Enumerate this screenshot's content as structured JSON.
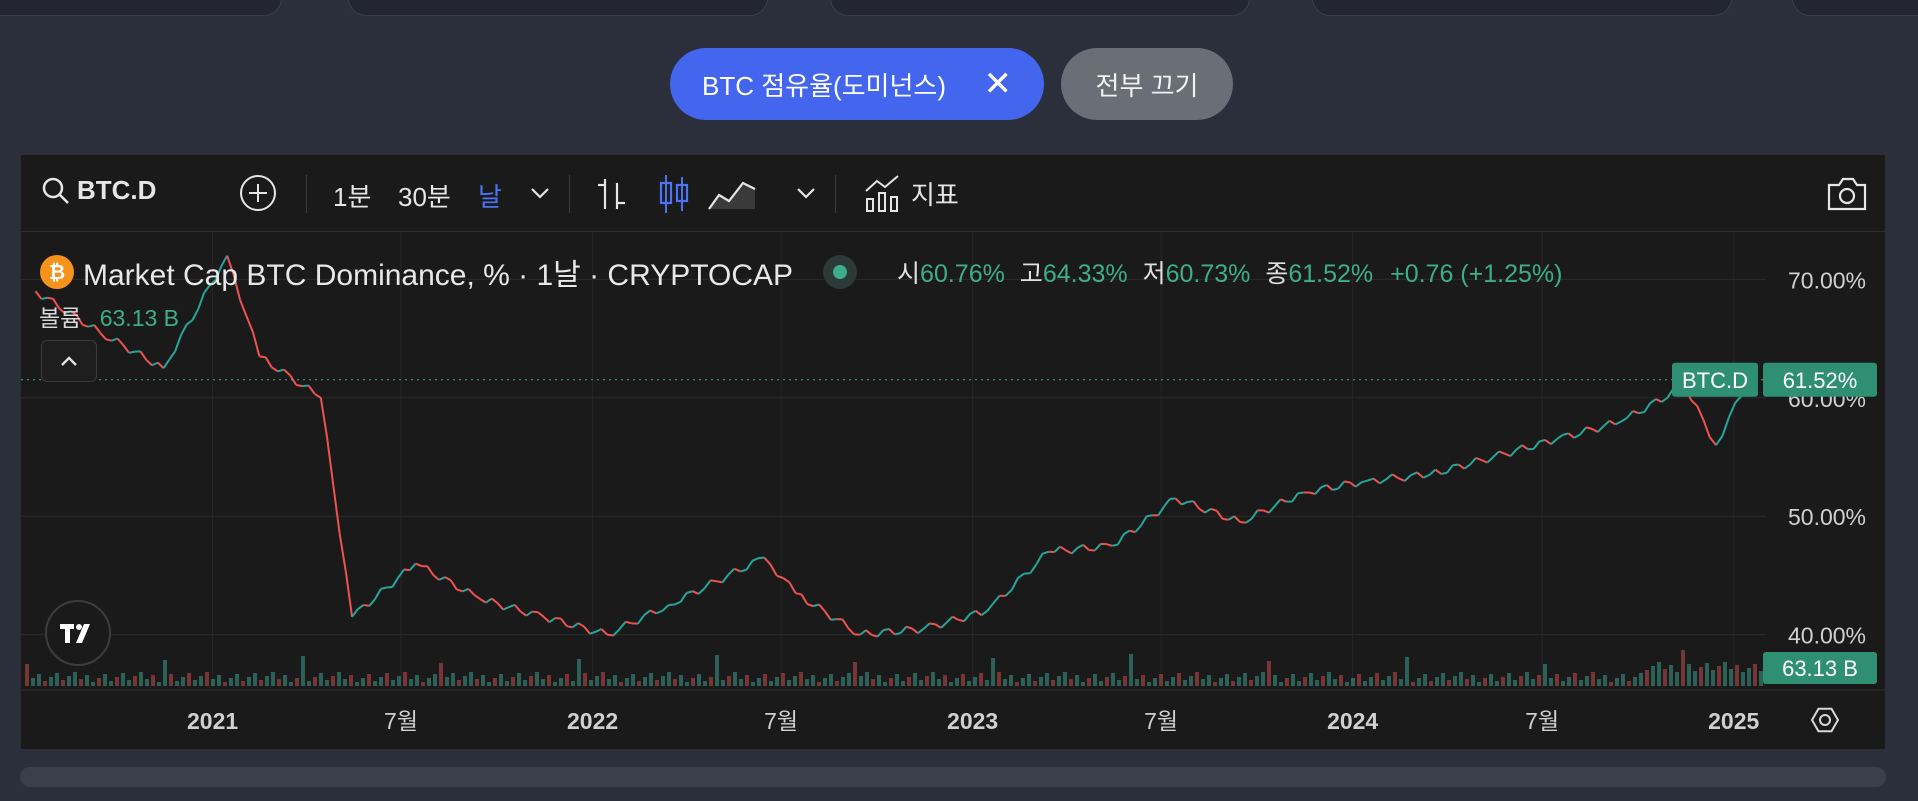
{
  "filter_chips": {
    "active_label": "BTC 점유율(도미넌스)",
    "close_icon": "✕",
    "off_all_label": "전부 끄기"
  },
  "toolbar": {
    "symbol": "BTC.D",
    "intervals": [
      "1분",
      "30분",
      "날"
    ],
    "active_interval": "날",
    "indicators_label": "지표"
  },
  "legend": {
    "title": "Market Cap BTC Dominance, % · 1날 · CRYPTOCAP",
    "open_label": "시",
    "open": "60.76%",
    "high_label": "고",
    "high": "64.33%",
    "low_label": "저",
    "low": "60.73%",
    "close_label": "종",
    "close": "61.52%",
    "change": "+0.76 (+1.25%)",
    "volume_label": "볼륨",
    "volume": "63.13 B"
  },
  "price_tags": {
    "symbol_tag": "BTC.D",
    "price": "61.52%",
    "volume": "63.13 B"
  },
  "colors": {
    "up": "#26a69a",
    "down": "#ef5350",
    "accent": "#4466ee",
    "tag": "#2e8f73"
  },
  "chart_data": {
    "type": "line",
    "title": "Market Cap BTC Dominance, %",
    "y_unit": "%",
    "y_ticks": [
      "70.00%",
      "60.00%",
      "50.00%",
      "40.00%"
    ],
    "ylim": [
      36,
      74
    ],
    "x_ticks": [
      "2021",
      "7월",
      "2022",
      "7월",
      "2023",
      "7월",
      "2024",
      "7월",
      "2025"
    ],
    "x": [
      "2020-07",
      "2020-09",
      "2020-11",
      "2021-01",
      "2021-02",
      "2021-04",
      "2021-05",
      "2021-07",
      "2021-09",
      "2021-11",
      "2022-01",
      "2022-03",
      "2022-06",
      "2022-07",
      "2022-09",
      "2022-11",
      "2023-01",
      "2023-03",
      "2023-05",
      "2023-07",
      "2023-09",
      "2023-11",
      "2024-01",
      "2024-03",
      "2024-05",
      "2024-07",
      "2024-09",
      "2024-11",
      "2024-12",
      "2025-01"
    ],
    "values": [
      69.0,
      65.5,
      62.5,
      72.0,
      63.5,
      60.0,
      41.5,
      46.0,
      43.0,
      41.5,
      40.0,
      42.5,
      46.5,
      43.5,
      40.0,
      40.5,
      42.0,
      47.0,
      47.5,
      51.5,
      49.5,
      52.0,
      53.0,
      53.5,
      55.0,
      56.5,
      58.0,
      61.0,
      56.0,
      61.52
    ],
    "grid": true,
    "legend_position": "top-left"
  }
}
